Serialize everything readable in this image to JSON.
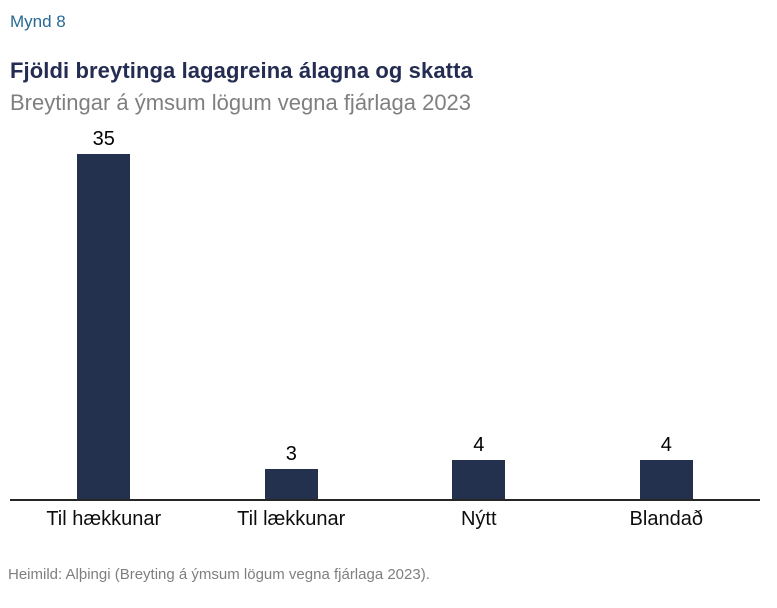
{
  "figure_label": "Mynd 8",
  "header": {
    "title": "Fjöldi breytinga lagagreina álagna og skatta",
    "subtitle": "Breytingar á ýmsum lögum vegna fjárlaga 2023"
  },
  "footer": {
    "source": "Heimild: Alþingi (Breyting á ýmsum lögum vegna fjárlaga 2023)."
  },
  "colors": {
    "bar": "#23304E",
    "title": "#242C52",
    "figure_label": "#266A94",
    "muted": "#7F7F7F",
    "axis": "#262626"
  },
  "chart_data": {
    "type": "bar",
    "categories": [
      "Til hækkunar",
      "Til lækkunar",
      "Nýtt",
      "Blandað"
    ],
    "values": [
      35,
      3,
      4,
      4
    ],
    "title": "Fjöldi breytinga lagagreina álagna og skatta",
    "subtitle": "Breytingar á ýmsum lögum vegna fjárlaga 2023",
    "xlabel": "",
    "ylabel": "",
    "ylim": [
      0,
      35
    ],
    "grid": false,
    "legend": "none",
    "value_labels": true,
    "bar_color": "#23304E"
  }
}
